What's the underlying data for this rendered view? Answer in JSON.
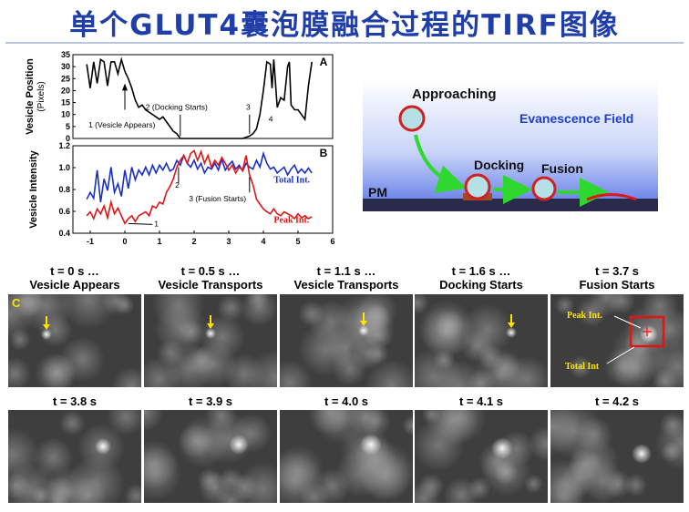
{
  "title": "单个GLUT4囊泡膜融合过程的TIRF图像",
  "colors": {
    "title": "#1f3ea8",
    "total_int": "#1a2fc8",
    "peak_int": "#e01515",
    "marker_arrow": "#ffe400",
    "box": "#e01515"
  },
  "chart_data": [
    {
      "type": "line",
      "panel": "A",
      "ylabel": "Vesicle Position",
      "ylabel_unit": "(Pixels)",
      "ylim": [
        0,
        35
      ],
      "yticks": [
        "0",
        "5",
        "10",
        "15",
        "20",
        "25",
        "30",
        "35"
      ],
      "xlim": [
        -1.5,
        6
      ],
      "series": [
        {
          "x": [
            -1.1,
            -1.0,
            -0.9,
            -0.8,
            -0.7,
            -0.6,
            -0.5,
            -0.4,
            -0.3,
            -0.2,
            -0.1,
            0.0,
            0.1,
            0.2,
            0.3,
            0.4,
            0.5,
            0.6,
            0.7,
            0.8,
            0.9,
            1.0,
            1.1,
            1.2,
            1.3,
            1.4,
            1.5,
            1.6,
            1.8,
            2.0,
            2.2,
            2.4,
            2.6,
            2.8,
            3.0,
            3.2,
            3.4,
            3.6,
            3.7,
            3.8,
            3.9,
            4.0,
            4.1,
            4.2,
            4.25,
            4.3,
            4.4,
            4.5,
            4.6,
            4.7,
            4.75,
            4.8,
            4.9,
            5.0,
            5.1,
            5.2,
            5.3,
            5.4
          ],
          "y": [
            31,
            21,
            32,
            23,
            33,
            32,
            22,
            32,
            32,
            27,
            33,
            28,
            25,
            21,
            16,
            13,
            14,
            12,
            11,
            10,
            9,
            8,
            9,
            7,
            5,
            3,
            2,
            0,
            0,
            0,
            0,
            0,
            0,
            0,
            0,
            0,
            0,
            1,
            2,
            4,
            10,
            20,
            32,
            31,
            21,
            33,
            13,
            17,
            16,
            30,
            32,
            14,
            12,
            12,
            10,
            8,
            22,
            32
          ]
        }
      ],
      "annotations": [
        "1 (Vesicle Appears)",
        "2 (Docking Starts)",
        "3",
        "4"
      ]
    },
    {
      "type": "line",
      "panel": "B",
      "ylabel": "Vesicle Intensity",
      "ylim": [
        0.4,
        1.3
      ],
      "yticks": [
        "0.4",
        "0.6",
        "0.8",
        "1.0",
        "1.2"
      ],
      "xlim": [
        -1.5,
        6
      ],
      "xticks": [
        "-1",
        "0",
        "1",
        "2",
        "3",
        "4",
        "5",
        "6"
      ],
      "series": [
        {
          "name": "Total Int.",
          "x": [
            -1.1,
            -1.0,
            -0.9,
            -0.8,
            -0.7,
            -0.6,
            -0.5,
            -0.4,
            -0.3,
            -0.2,
            -0.1,
            0.0,
            0.1,
            0.2,
            0.3,
            0.4,
            0.5,
            0.6,
            0.7,
            0.8,
            0.9,
            1.0,
            1.1,
            1.2,
            1.3,
            1.4,
            1.5,
            1.6,
            1.7,
            1.8,
            1.9,
            2.0,
            2.1,
            2.2,
            2.3,
            2.4,
            2.5,
            2.6,
            2.7,
            2.8,
            2.9,
            3.0,
            3.1,
            3.2,
            3.3,
            3.4,
            3.5,
            3.6,
            3.7,
            3.8,
            3.9,
            4.0,
            4.1,
            4.2,
            4.3,
            4.4,
            4.5,
            4.6,
            4.7,
            4.8,
            4.9,
            5.0,
            5.1,
            5.2,
            5.3,
            5.4
          ],
          "y": [
            0.75,
            0.82,
            0.76,
            1.05,
            0.72,
            0.96,
            0.84,
            1.08,
            0.82,
            0.91,
            0.78,
            1.05,
            0.86,
            1.08,
            0.95,
            1.05,
            1.0,
            1.08,
            1.0,
            1.1,
            1.02,
            1.1,
            1.05,
            1.12,
            1.04,
            1.06,
            1.15,
            1.1,
            1.2,
            1.12,
            1.08,
            1.15,
            1.06,
            1.12,
            1.02,
            1.08,
            1.06,
            1.12,
            1.05,
            1.16,
            1.05,
            1.1,
            1.14,
            1.06,
            1.1,
            1.04,
            1.12,
            1.08,
            1.06,
            1.15,
            1.08,
            1.22,
            1.12,
            1.06,
            1.08,
            1.02,
            1.05,
            1.08,
            1.0,
            1.06,
            1.1,
            1.02,
            1.06,
            1.02,
            1.07,
            1.02
          ]
        },
        {
          "name": "Peak Int.",
          "x": [
            -1.1,
            -1.0,
            -0.9,
            -0.8,
            -0.7,
            -0.6,
            -0.5,
            -0.4,
            -0.3,
            -0.2,
            -0.1,
            0.0,
            0.1,
            0.2,
            0.3,
            0.4,
            0.5,
            0.6,
            0.7,
            0.8,
            0.9,
            1.0,
            1.1,
            1.2,
            1.3,
            1.4,
            1.5,
            1.6,
            1.7,
            1.8,
            1.9,
            2.0,
            2.1,
            2.2,
            2.3,
            2.4,
            2.5,
            2.6,
            2.7,
            2.8,
            2.9,
            3.0,
            3.1,
            3.2,
            3.3,
            3.4,
            3.5,
            3.6,
            3.7,
            3.8,
            3.9,
            4.0,
            4.1,
            4.2,
            4.3,
            4.4,
            4.5,
            4.6,
            4.7,
            4.8,
            4.9,
            5.0,
            5.1,
            5.2,
            5.3,
            5.4
          ],
          "y": [
            0.58,
            0.62,
            0.55,
            0.65,
            0.6,
            0.68,
            0.56,
            0.72,
            0.6,
            0.66,
            0.58,
            0.5,
            0.55,
            0.58,
            0.52,
            0.58,
            0.6,
            0.62,
            0.58,
            0.68,
            0.66,
            0.72,
            0.7,
            0.82,
            0.88,
            0.96,
            1.08,
            1.15,
            1.2,
            1.12,
            1.22,
            1.25,
            1.15,
            1.24,
            1.12,
            1.2,
            1.08,
            1.15,
            1.1,
            1.18,
            1.12,
            1.05,
            1.1,
            1.02,
            1.08,
            1.05,
            1.2,
            1.0,
            0.9,
            0.75,
            0.7,
            0.65,
            0.62,
            0.6,
            0.65,
            0.6,
            0.58,
            0.62,
            0.6,
            0.58,
            0.55,
            0.6,
            0.56,
            0.58,
            0.55,
            0.57
          ]
        }
      ],
      "annotations": [
        "1",
        "2",
        "3 (Fusion Starts)"
      ]
    }
  ],
  "schematic": {
    "approaching": "Approaching",
    "evanescence_field": "Evanescence Field",
    "docking": "Docking",
    "fusion": "Fusion",
    "pm": "PM"
  },
  "panel_c_label": "C",
  "frames_row1": [
    {
      "time": "t = 0 s …",
      "caption": "Vesicle Appears"
    },
    {
      "time": "t = 0.5 s …",
      "caption": "Vesicle Transports"
    },
    {
      "time": "t = 1.1 s …",
      "caption": "Vesicle Transports"
    },
    {
      "time": "t = 1.6 s …",
      "caption": "Docking Starts"
    },
    {
      "time": "t = 3.7 s",
      "caption": "Fusion Starts"
    }
  ],
  "frames_row2": [
    {
      "time": "t = 3.8 s"
    },
    {
      "time": "t = 3.9 s"
    },
    {
      "time": "t = 4.0 s"
    },
    {
      "time": "t = 4.1 s"
    },
    {
      "time": "t = 4.2 s"
    }
  ],
  "fusion_frame_labels": {
    "peak": "Peak Int.",
    "total": "Total Int"
  }
}
